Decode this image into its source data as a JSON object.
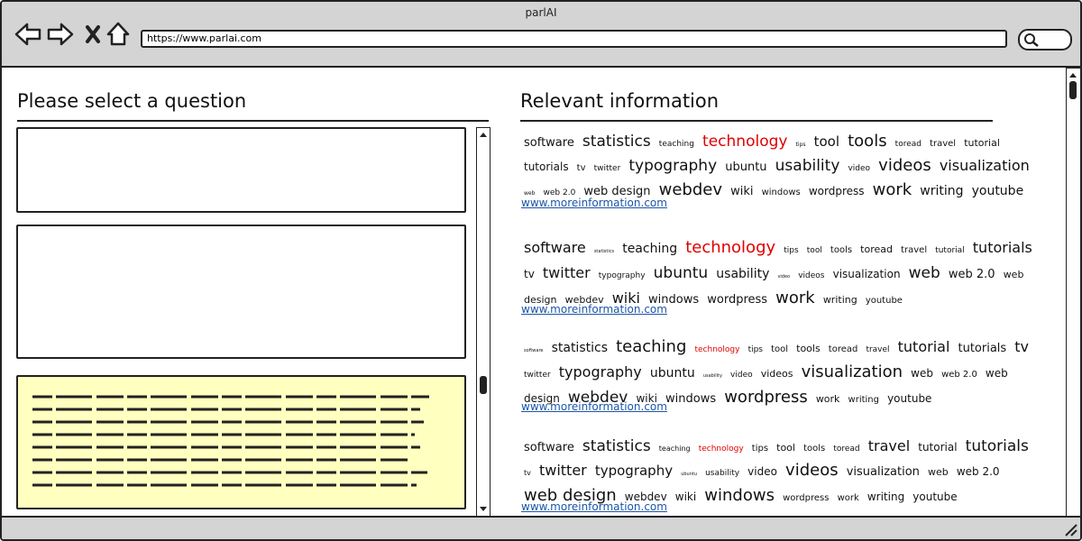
{
  "window": {
    "title": "parlAI",
    "url": "https://www.parlai.com"
  },
  "left_panel": {
    "heading": "Please select a question"
  },
  "right_panel": {
    "heading": "Relevant information",
    "word_clouds": [
      {
        "words": [
          "software",
          "statistics",
          "teaching",
          "technology",
          "tips",
          "tool",
          "tools",
          "toread",
          "travel",
          "tutorial",
          "tutorials",
          "tv",
          "twitter",
          "typography",
          "ubuntu",
          "usability",
          "video",
          "videos",
          "visualization",
          "web",
          "web 2.0",
          "web design",
          "webdev",
          "wiki",
          "windows",
          "wordpress",
          "work",
          "writing",
          "youtube"
        ],
        "link": "www.moreinformation.com"
      },
      {
        "words": [
          "software",
          "statistics",
          "teaching",
          "technology",
          "tips",
          "tool",
          "tools",
          "toread",
          "travel",
          "tutorial",
          "tutorials",
          "tv",
          "twitter",
          "typography",
          "ubuntu",
          "usability",
          "video",
          "videos",
          "visualization",
          "web",
          "web 2.0",
          "web design",
          "webdev",
          "wiki",
          "windows",
          "wordpress",
          "work",
          "writing",
          "youtube"
        ],
        "link": "www.moreinformation.com"
      },
      {
        "words": [
          "software",
          "statistics",
          "teaching",
          "technology",
          "tips",
          "tool",
          "tools",
          "toread",
          "travel",
          "tutorial",
          "tutorials",
          "tv",
          "twitter",
          "typography",
          "ubuntu",
          "usability",
          "video",
          "videos",
          "visualization",
          "web",
          "web 2.0",
          "web design",
          "webdev",
          "wiki",
          "windows",
          "wordpress",
          "work",
          "writing",
          "youtube"
        ],
        "link": "www.moreinformation.com"
      },
      {
        "words": [
          "software",
          "statistics",
          "teaching",
          "technology",
          "tips",
          "tool",
          "tools",
          "toread",
          "travel",
          "tutorial",
          "tutorials",
          "tv",
          "twitter",
          "typography",
          "ubuntu",
          "usability",
          "video",
          "videos",
          "visualization",
          "web",
          "web 2.0",
          "web design",
          "webdev",
          "wiki",
          "windows",
          "wordpress",
          "work",
          "writing",
          "youtube"
        ],
        "link": "www.moreinformation.com"
      }
    ]
  }
}
